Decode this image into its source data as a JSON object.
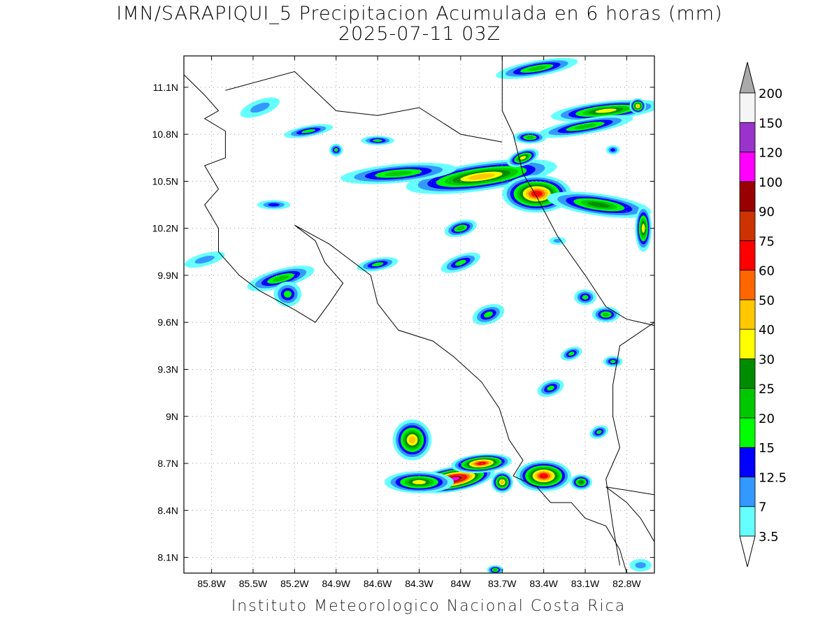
{
  "title": "IMN/SARAPIQUI_5 Precipitacion Acumulada en 6 horas (mm)",
  "subtitle": "2025-07-11 03Z",
  "footer": "Instituto Meteorologico Nacional Costa Rica",
  "map": {
    "lon_range": [
      -86.0,
      -82.6
    ],
    "lat_range": [
      8.0,
      11.3
    ],
    "lat_ticks": [
      {
        "lat": 11.1,
        "label": "11.1N"
      },
      {
        "lat": 10.8,
        "label": "10.8N"
      },
      {
        "lat": 10.5,
        "label": "10.5N"
      },
      {
        "lat": 10.2,
        "label": "10.2N"
      },
      {
        "lat": 9.9,
        "label": "9.9N"
      },
      {
        "lat": 9.6,
        "label": "9.6N"
      },
      {
        "lat": 9.3,
        "label": "9.3N"
      },
      {
        "lat": 9.0,
        "label": "9N"
      },
      {
        "lat": 8.7,
        "label": "8.7N"
      },
      {
        "lat": 8.4,
        "label": "8.4N"
      },
      {
        "lat": 8.1,
        "label": "8.1N"
      }
    ],
    "lon_ticks": [
      {
        "lon": -85.8,
        "label": "85.8W"
      },
      {
        "lon": -85.5,
        "label": "85.5W"
      },
      {
        "lon": -85.2,
        "label": "85.2W"
      },
      {
        "lon": -84.9,
        "label": "84.9W"
      },
      {
        "lon": -84.6,
        "label": "84.6W"
      },
      {
        "lon": -84.3,
        "label": "84.3W"
      },
      {
        "lon": -84.0,
        "label": "84W"
      },
      {
        "lon": -83.7,
        "label": "83.7W"
      },
      {
        "lon": -83.4,
        "label": "83.4W"
      },
      {
        "lon": -83.1,
        "label": "83.1W"
      },
      {
        "lon": -82.8,
        "label": "82.8W"
      }
    ],
    "grid": true
  },
  "colorbar": {
    "levels": [
      {
        "label": "3.5",
        "color": "#66ffff"
      },
      {
        "label": "7",
        "color": "#3399ff"
      },
      {
        "label": "12.5",
        "color": "#0000ff"
      },
      {
        "label": "15",
        "color": "#00ff00"
      },
      {
        "label": "20",
        "color": "#00c800"
      },
      {
        "label": "25",
        "color": "#008c00"
      },
      {
        "label": "30",
        "color": "#ffff00"
      },
      {
        "label": "40",
        "color": "#ffc800"
      },
      {
        "label": "50",
        "color": "#ff6600"
      },
      {
        "label": "60",
        "color": "#ff0000"
      },
      {
        "label": "75",
        "color": "#cc3300"
      },
      {
        "label": "90",
        "color": "#990000"
      },
      {
        "label": "100",
        "color": "#ff00ff"
      },
      {
        "label": "120",
        "color": "#9933cc"
      },
      {
        "label": "150",
        "color": "#f5f5f5"
      },
      {
        "label": "200",
        "color": "#999999"
      }
    ],
    "low_arrow_color": "#ffffff",
    "high_arrow_color": "#aaaaaa"
  },
  "precip_cells": [
    {
      "lon": -83.85,
      "lat": 10.53,
      "rx": 0.55,
      "ry": 0.09,
      "rot": -8,
      "peak": 45
    },
    {
      "lon": -83.45,
      "lat": 10.42,
      "rx": 0.25,
      "ry": 0.12,
      "rot": 0,
      "peak": 70
    },
    {
      "lon": -83.0,
      "lat": 10.35,
      "rx": 0.38,
      "ry": 0.07,
      "rot": 8,
      "peak": 28
    },
    {
      "lon": -84.45,
      "lat": 10.55,
      "rx": 0.42,
      "ry": 0.06,
      "rot": -5,
      "peak": 24
    },
    {
      "lon": -82.95,
      "lat": 10.95,
      "rx": 0.4,
      "ry": 0.06,
      "rot": -6,
      "peak": 32
    },
    {
      "lon": -83.1,
      "lat": 10.85,
      "rx": 0.35,
      "ry": 0.05,
      "rot": -10,
      "peak": 22
    },
    {
      "lon": -83.5,
      "lat": 10.78,
      "rx": 0.12,
      "ry": 0.04,
      "rot": 0,
      "peak": 22
    },
    {
      "lon": -83.55,
      "lat": 10.65,
      "rx": 0.12,
      "ry": 0.05,
      "rot": -20,
      "peak": 30
    },
    {
      "lon": -83.45,
      "lat": 11.22,
      "rx": 0.3,
      "ry": 0.05,
      "rot": -10,
      "peak": 22
    },
    {
      "lon": -82.68,
      "lat": 10.2,
      "rx": 0.06,
      "ry": 0.15,
      "rot": 0,
      "peak": 30
    },
    {
      "lon": -82.72,
      "lat": 10.98,
      "rx": 0.06,
      "ry": 0.05,
      "rot": 0,
      "peak": 45
    },
    {
      "lon": -84.0,
      "lat": 10.2,
      "rx": 0.12,
      "ry": 0.05,
      "rot": -15,
      "peak": 20
    },
    {
      "lon": -84.6,
      "lat": 10.76,
      "rx": 0.12,
      "ry": 0.03,
      "rot": 0,
      "peak": 18
    },
    {
      "lon": -84.9,
      "lat": 10.7,
      "rx": 0.05,
      "ry": 0.04,
      "rot": 0,
      "peak": 16
    },
    {
      "lon": -85.1,
      "lat": 10.82,
      "rx": 0.18,
      "ry": 0.035,
      "rot": -10,
      "peak": 16
    },
    {
      "lon": -85.45,
      "lat": 10.97,
      "rx": 0.15,
      "ry": 0.05,
      "rot": -20,
      "peak": 12
    },
    {
      "lon": -85.35,
      "lat": 10.35,
      "rx": 0.12,
      "ry": 0.03,
      "rot": 0,
      "peak": 13
    },
    {
      "lon": -85.3,
      "lat": 9.88,
      "rx": 0.25,
      "ry": 0.06,
      "rot": -15,
      "peak": 20
    },
    {
      "lon": -85.25,
      "lat": 9.78,
      "rx": 0.1,
      "ry": 0.08,
      "rot": 0,
      "peak": 18
    },
    {
      "lon": -85.85,
      "lat": 10.0,
      "rx": 0.15,
      "ry": 0.04,
      "rot": -15,
      "peak": 8
    },
    {
      "lon": -84.6,
      "lat": 9.97,
      "rx": 0.15,
      "ry": 0.04,
      "rot": -10,
      "peak": 16
    },
    {
      "lon": -84.0,
      "lat": 9.98,
      "rx": 0.15,
      "ry": 0.05,
      "rot": -20,
      "peak": 16
    },
    {
      "lon": -83.8,
      "lat": 9.65,
      "rx": 0.12,
      "ry": 0.06,
      "rot": -20,
      "peak": 16
    },
    {
      "lon": -83.1,
      "lat": 9.76,
      "rx": 0.08,
      "ry": 0.05,
      "rot": 0,
      "peak": 15
    },
    {
      "lon": -82.95,
      "lat": 9.65,
      "rx": 0.1,
      "ry": 0.05,
      "rot": 0,
      "peak": 22
    },
    {
      "lon": -83.2,
      "lat": 9.4,
      "rx": 0.08,
      "ry": 0.04,
      "rot": -20,
      "peak": 15
    },
    {
      "lon": -82.9,
      "lat": 9.35,
      "rx": 0.07,
      "ry": 0.035,
      "rot": 0,
      "peak": 15
    },
    {
      "lon": -83.35,
      "lat": 9.18,
      "rx": 0.1,
      "ry": 0.05,
      "rot": -20,
      "peak": 17
    },
    {
      "lon": -83.0,
      "lat": 8.9,
      "rx": 0.07,
      "ry": 0.04,
      "rot": -20,
      "peak": 15
    },
    {
      "lon": -84.35,
      "lat": 8.85,
      "rx": 0.14,
      "ry": 0.13,
      "rot": 0,
      "peak": 42
    },
    {
      "lon": -84.05,
      "lat": 8.6,
      "rx": 0.3,
      "ry": 0.08,
      "rot": -10,
      "peak": 105
    },
    {
      "lon": -83.85,
      "lat": 8.7,
      "rx": 0.22,
      "ry": 0.06,
      "rot": -5,
      "peak": 70
    },
    {
      "lon": -84.3,
      "lat": 8.58,
      "rx": 0.25,
      "ry": 0.07,
      "rot": 0,
      "peak": 35
    },
    {
      "lon": -83.7,
      "lat": 8.58,
      "rx": 0.08,
      "ry": 0.07,
      "rot": 0,
      "peak": 40
    },
    {
      "lon": -83.4,
      "lat": 8.62,
      "rx": 0.2,
      "ry": 0.1,
      "rot": 0,
      "peak": 70
    },
    {
      "lon": -83.13,
      "lat": 8.58,
      "rx": 0.08,
      "ry": 0.05,
      "rot": 0,
      "peak": 25
    },
    {
      "lon": -82.7,
      "lat": 8.05,
      "rx": 0.08,
      "ry": 0.04,
      "rot": 0,
      "peak": 8
    },
    {
      "lon": -83.75,
      "lat": 8.02,
      "rx": 0.06,
      "ry": 0.03,
      "rot": 0,
      "peak": 20
    },
    {
      "lon": -83.3,
      "lat": 10.12,
      "rx": 0.06,
      "ry": 0.025,
      "rot": 0,
      "peak": 8
    },
    {
      "lon": -82.9,
      "lat": 10.7,
      "rx": 0.05,
      "ry": 0.03,
      "rot": 0,
      "peak": 14
    }
  ],
  "coastlines": [
    [
      [
        -86.0,
        11.18
      ],
      [
        -85.85,
        11.05
      ],
      [
        -85.75,
        10.95
      ],
      [
        -85.85,
        10.9
      ],
      [
        -85.7,
        10.82
      ],
      [
        -85.7,
        10.65
      ],
      [
        -85.85,
        10.6
      ],
      [
        -85.75,
        10.45
      ],
      [
        -85.85,
        10.35
      ],
      [
        -85.75,
        10.2
      ],
      [
        -85.75,
        10.05
      ],
      [
        -85.6,
        9.9
      ],
      [
        -85.45,
        9.8
      ],
      [
        -85.2,
        9.68
      ],
      [
        -85.05,
        9.6
      ],
      [
        -84.95,
        9.72
      ],
      [
        -84.85,
        9.85
      ],
      [
        -84.98,
        9.98
      ],
      [
        -85.05,
        10.12
      ],
      [
        -85.2,
        10.22
      ],
      [
        -84.95,
        10.1
      ],
      [
        -84.8,
        10.0
      ],
      [
        -84.65,
        9.9
      ],
      [
        -84.6,
        9.72
      ],
      [
        -84.45,
        9.55
      ],
      [
        -84.2,
        9.48
      ],
      [
        -84.05,
        9.38
      ],
      [
        -83.85,
        9.22
      ],
      [
        -83.72,
        9.05
      ],
      [
        -83.65,
        8.85
      ],
      [
        -83.55,
        8.72
      ],
      [
        -83.62,
        8.62
      ],
      [
        -83.45,
        8.55
      ],
      [
        -83.35,
        8.45
      ],
      [
        -83.2,
        8.45
      ],
      [
        -83.1,
        8.35
      ],
      [
        -82.95,
        8.3
      ],
      [
        -82.85,
        8.15
      ],
      [
        -82.8,
        8.0
      ]
    ],
    [
      [
        -82.6,
        9.58
      ],
      [
        -82.8,
        9.62
      ],
      [
        -82.95,
        9.7
      ],
      [
        -83.1,
        9.9
      ],
      [
        -83.3,
        10.15
      ],
      [
        -83.45,
        10.4
      ],
      [
        -83.55,
        10.55
      ],
      [
        -83.62,
        10.8
      ],
      [
        -83.7,
        10.95
      ],
      [
        -83.7,
        11.3
      ]
    ],
    [
      [
        -82.6,
        8.2
      ],
      [
        -82.7,
        8.35
      ],
      [
        -82.8,
        8.45
      ],
      [
        -82.95,
        8.55
      ],
      [
        -82.6,
        8.5
      ]
    ]
  ],
  "borders": [
    [
      [
        -85.7,
        11.08
      ],
      [
        -85.2,
        11.2
      ],
      [
        -84.9,
        10.95
      ],
      [
        -84.6,
        10.92
      ],
      [
        -84.3,
        10.97
      ],
      [
        -84.0,
        10.8
      ],
      [
        -83.7,
        10.75
      ]
    ],
    [
      [
        -82.6,
        9.6
      ],
      [
        -82.85,
        9.45
      ],
      [
        -82.9,
        9.2
      ],
      [
        -82.9,
        9.0
      ],
      [
        -82.85,
        8.8
      ],
      [
        -82.95,
        8.6
      ],
      [
        -82.9,
        8.3
      ],
      [
        -82.85,
        8.05
      ]
    ]
  ]
}
